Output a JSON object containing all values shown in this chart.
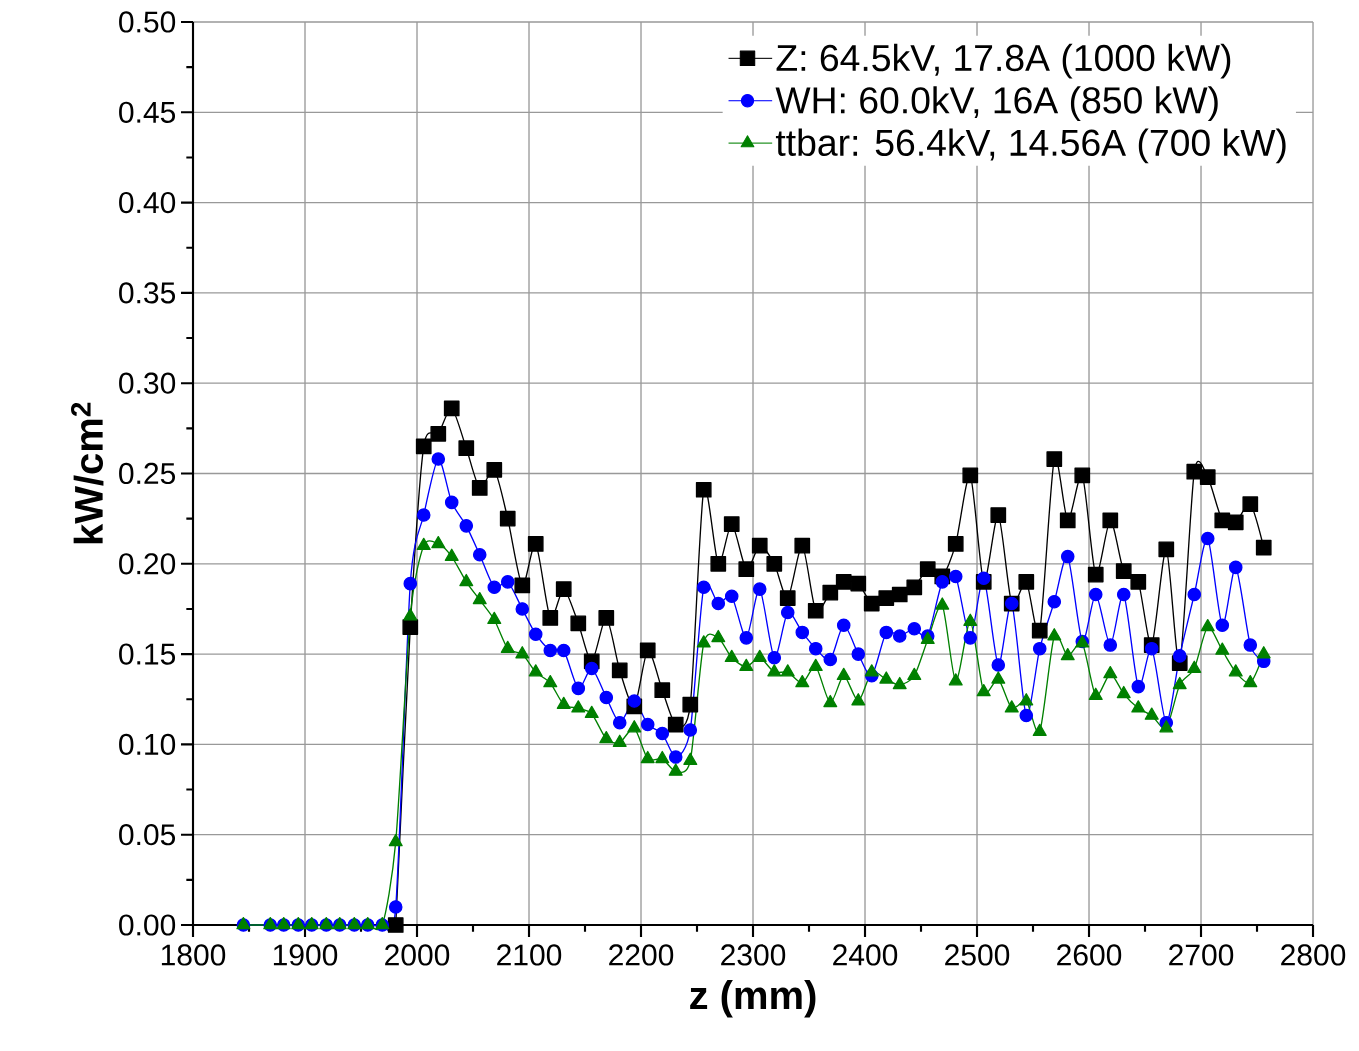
{
  "chart_data": {
    "type": "line",
    "xlabel": "z (mm)",
    "ylabel": "kW/cm$^{2}$",
    "x": [
      1845,
      1869,
      1881,
      1894,
      1906,
      1919,
      1931,
      1944,
      1956,
      1969,
      1981,
      1994,
      2006,
      2019,
      2031,
      2044,
      2056,
      2069,
      2081,
      2094,
      2106,
      2119,
      2131,
      2144,
      2156,
      2169,
      2181,
      2194,
      2206,
      2219,
      2231,
      2244,
      2256,
      2269,
      2281,
      2294,
      2306,
      2319,
      2331,
      2344,
      2356,
      2369,
      2381,
      2394,
      2406,
      2419,
      2431,
      2444,
      2456,
      2469,
      2481,
      2494,
      2506,
      2519,
      2531,
      2544,
      2556,
      2569,
      2581,
      2594,
      2606,
      2619,
      2631,
      2644,
      2656,
      2669,
      2681,
      2694,
      2706,
      2719,
      2731,
      2744,
      2756
    ],
    "series": [
      {
        "name": "Z: 64.5kV, 17.8A (1000 kW)",
        "color": "#000000",
        "marker": "square",
        "values": [
          null,
          null,
          null,
          null,
          null,
          null,
          null,
          null,
          null,
          null,
          0,
          0.165,
          0.265,
          0.272,
          0.286,
          0.264,
          0.242,
          0.252,
          0.225,
          0.188,
          0.211,
          0.17,
          0.186,
          0.167,
          0.146,
          0.17,
          0.141,
          0.121,
          0.152,
          0.13,
          0.111,
          0.122,
          0.241,
          0.2,
          0.222,
          0.197,
          0.21,
          0.2,
          0.181,
          0.21,
          0.174,
          0.184,
          0.19,
          0.189,
          0.178,
          0.181,
          0.183,
          0.187,
          0.197,
          0.193,
          0.211,
          0.249,
          0.19,
          0.227,
          0.178,
          0.19,
          0.163,
          0.258,
          0.224,
          0.249,
          0.194,
          0.224,
          0.196,
          0.19,
          0.155,
          0.208,
          0.145,
          0.251,
          0.248,
          0.224,
          0.223,
          0.233,
          0.209
        ]
      },
      {
        "name": "WH: 60.0kV, 16A (850 kW)",
        "color": "#0000ff",
        "marker": "circle",
        "values": [
          0,
          0,
          0,
          0,
          0,
          0,
          0,
          0,
          0,
          0,
          0.01,
          0.189,
          0.227,
          0.258,
          0.234,
          0.221,
          0.205,
          0.187,
          0.19,
          0.175,
          0.161,
          0.152,
          0.152,
          0.131,
          0.142,
          0.126,
          0.112,
          0.124,
          0.111,
          0.106,
          0.093,
          0.108,
          0.187,
          0.178,
          0.182,
          0.159,
          0.186,
          0.148,
          0.173,
          0.162,
          0.153,
          0.147,
          0.166,
          0.15,
          0.138,
          0.162,
          0.16,
          0.164,
          0.16,
          0.19,
          0.193,
          0.159,
          0.192,
          0.144,
          0.178,
          0.116,
          0.153,
          0.179,
          0.204,
          0.157,
          0.183,
          0.155,
          0.183,
          0.132,
          0.153,
          0.112,
          0.149,
          0.183,
          0.214,
          0.166,
          0.198,
          0.155,
          0.146
        ]
      },
      {
        "name": "ttbar: 56.4kV, 14.56A (700 kW)",
        "color": "#008000",
        "marker": "triangle",
        "values": [
          0,
          0,
          0,
          0,
          0,
          0,
          0,
          0,
          0,
          0,
          0.046,
          0.171,
          0.21,
          0.211,
          0.204,
          0.19,
          0.18,
          0.169,
          0.153,
          0.15,
          0.14,
          0.134,
          0.122,
          0.12,
          0.117,
          0.103,
          0.101,
          0.109,
          0.092,
          0.092,
          0.085,
          0.091,
          0.156,
          0.159,
          0.148,
          0.143,
          0.148,
          0.14,
          0.14,
          0.134,
          0.143,
          0.123,
          0.138,
          0.124,
          0.14,
          0.136,
          0.133,
          0.138,
          0.158,
          0.177,
          0.135,
          0.168,
          0.129,
          0.136,
          0.12,
          0.124,
          0.107,
          0.16,
          0.149,
          0.156,
          0.127,
          0.139,
          0.128,
          0.12,
          0.116,
          0.109,
          0.133,
          0.142,
          0.165,
          0.152,
          0.14,
          0.134,
          0.15
        ]
      }
    ],
    "xlim": [
      1800,
      2800
    ],
    "xticks": [
      1800,
      1900,
      2000,
      2100,
      2200,
      2300,
      2400,
      2500,
      2600,
      2700,
      2800
    ],
    "ylim": [
      0,
      0.5
    ],
    "yticks": [
      {
        "value": 0,
        "label": "0.00"
      },
      {
        "value": 0.05,
        "label": "0.05"
      },
      {
        "value": 0.1,
        "label": "0.10"
      },
      {
        "value": 0.15,
        "label": "0.15"
      },
      {
        "value": 0.2,
        "label": "0.20"
      },
      {
        "value": 0.25,
        "label": "0.25"
      },
      {
        "value": 0.3,
        "label": "0.30"
      },
      {
        "value": 0.35,
        "label": "0.35"
      },
      {
        "value": 0.4,
        "label": "0.40"
      },
      {
        "value": 0.45,
        "label": "0.45"
      },
      {
        "value": 0.5,
        "label": "0.50"
      }
    ],
    "grid": true,
    "legend": "top right",
    "line_style": "solid"
  }
}
